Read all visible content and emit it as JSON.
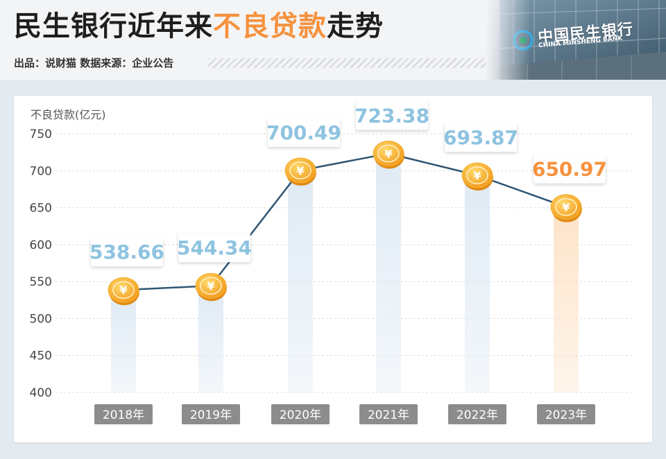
{
  "header": {
    "title_part1": "民生银行近年来",
    "title_highlight": "不良贷款",
    "title_part2": "走势",
    "subtitle": "出品：说财猫  数据来源：企业公告"
  },
  "banner": {
    "name_cn": "中国民生银行",
    "name_en": "CHINA MINSHENG BANK"
  },
  "colors": {
    "accent_orange": "#f5923e",
    "label_blue": "#8ec3e0",
    "line": "#2f5573",
    "bar_blue": "#dfeaf4",
    "bar_orange": "#fde3c8",
    "year_badge": "#8c8c8c"
  },
  "chart_data": {
    "type": "line",
    "ylabel": "不良贷款(亿元)",
    "ylim": [
      400,
      750
    ],
    "yticks": [
      "750",
      "700",
      "650",
      "600",
      "550",
      "500",
      "450",
      "400"
    ],
    "categories": [
      "2018年",
      "2019年",
      "2020年",
      "2021年",
      "2022年",
      "2023年"
    ],
    "values": [
      538.66,
      544.34,
      700.49,
      723.38,
      693.87,
      650.97
    ],
    "value_labels": [
      "538.66",
      "544.34",
      "700.49",
      "723.38",
      "693.87",
      "650.97"
    ],
    "highlight_index": 5,
    "marker_icon": "yuan-coin-icon",
    "grid": true
  }
}
